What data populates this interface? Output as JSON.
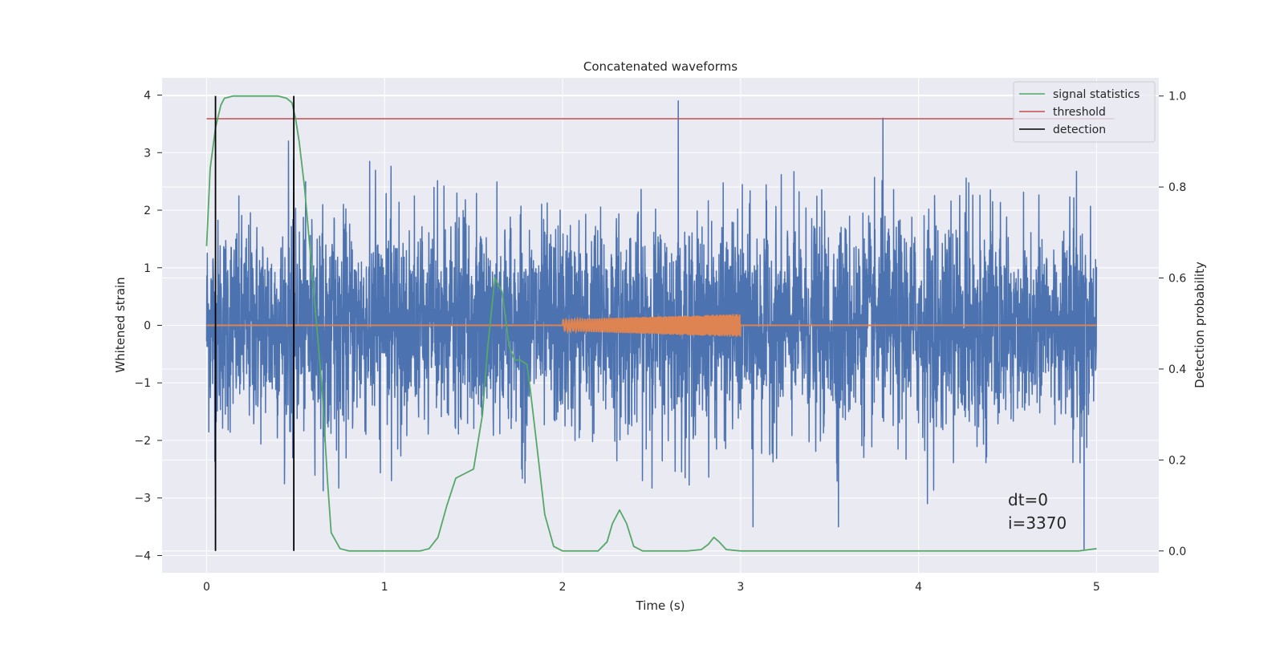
{
  "chart_data": {
    "type": "line",
    "title": "Concatenated waveforms",
    "xlabel": "Time (s)",
    "ylabel": "Whitened strain",
    "ylabel_right": "Detection probability",
    "xlim": [
      -0.25,
      5.35
    ],
    "ylim": [
      -4.3,
      4.3
    ],
    "ylim_right": [
      -0.048,
      1.04
    ],
    "x_ticks": [
      0,
      1,
      2,
      3,
      4,
      5
    ],
    "x_tick_labels": [
      "0",
      "1",
      "2",
      "3",
      "4",
      "5"
    ],
    "y_ticks": [
      4,
      3,
      2,
      1,
      0,
      -1,
      -2,
      -3,
      -4
    ],
    "y_tick_labels": [
      "4",
      "3",
      "2",
      "1",
      "0",
      "−1",
      "−2",
      "−3",
      "−4"
    ],
    "y_right_ticks": [
      1.0,
      0.8,
      0.6,
      0.4,
      0.2,
      0.0
    ],
    "y_right_tick_labels": [
      "1.0",
      "0.8",
      "0.6",
      "0.4",
      "0.2",
      "0.0"
    ],
    "grid": true,
    "legend_position": "top-right",
    "legend": [
      {
        "label": "signal statistics",
        "color": "#55a868"
      },
      {
        "label": "threshold",
        "color": "#c44e52"
      },
      {
        "label": "detection",
        "color": "#000000"
      }
    ],
    "colors": {
      "strain": "#4c72b0",
      "injection": "#dd8452",
      "signal_statistics": "#55a868",
      "threshold": "#c44e52",
      "detection": "#000000",
      "axes_bg": "#eaeaf2",
      "grid": "#ffffff"
    },
    "series": [
      {
        "type": "line",
        "axis": "left",
        "x_range": [
          0,
          5
        ],
        "noise_std": 0.9,
        "spikes": [
          {
            "x": 0.46,
            "y": 3.2
          },
          {
            "x": 2.65,
            "y": 3.9
          },
          {
            "x": 3.8,
            "y": 3.6
          },
          {
            "x": 4.93,
            "y": -3.9
          },
          {
            "x": 0.05,
            "y": -3.2
          },
          {
            "x": 3.07,
            "y": -3.5
          },
          {
            "x": 3.55,
            "y": -3.5
          },
          {
            "x": 4.05,
            "y": -3.1
          }
        ]
      },
      {
        "type": "line",
        "axis": "left",
        "x_range": [
          0,
          5
        ],
        "chirp": {
          "start": 2.0,
          "end": 3.0,
          "amp_start": 0.1,
          "amp_end": 0.2
        }
      },
      {
        "name": "signal statistics",
        "axis": "right",
        "x": [
          0,
          0.02,
          0.05,
          0.08,
          0.1,
          0.15,
          0.2,
          0.3,
          0.4,
          0.45,
          0.48,
          0.5,
          0.52,
          0.55,
          0.6,
          0.65,
          0.68,
          0.7,
          0.75,
          0.8,
          1.0,
          1.2,
          1.25,
          1.3,
          1.35,
          1.4,
          1.45,
          1.5,
          1.55,
          1.58,
          1.62,
          1.66,
          1.7,
          1.73,
          1.76,
          1.8,
          1.82,
          1.85,
          1.9,
          1.95,
          2.0,
          2.1,
          2.2,
          2.25,
          2.28,
          2.32,
          2.36,
          2.4,
          2.45,
          2.7,
          2.78,
          2.82,
          2.85,
          2.88,
          2.92,
          3.0,
          4.0,
          4.9,
          5.0
        ],
        "y": [
          0.67,
          0.84,
          0.93,
          0.98,
          0.995,
          1.0,
          1.0,
          1.0,
          1.0,
          0.995,
          0.985,
          0.95,
          0.9,
          0.8,
          0.58,
          0.35,
          0.15,
          0.04,
          0.005,
          0.0,
          0.0,
          0.0,
          0.005,
          0.03,
          0.1,
          0.16,
          0.17,
          0.18,
          0.3,
          0.45,
          0.6,
          0.57,
          0.45,
          0.42,
          0.42,
          0.41,
          0.35,
          0.25,
          0.08,
          0.01,
          0.0,
          0.0,
          0.0,
          0.02,
          0.06,
          0.09,
          0.06,
          0.01,
          0.0,
          0.0,
          0.003,
          0.015,
          0.03,
          0.02,
          0.003,
          0.0,
          0.0,
          0.0,
          0.005
        ]
      },
      {
        "name": "threshold",
        "axis": "right",
        "x": [
          0,
          5.1
        ],
        "y": [
          0.95,
          0.95
        ]
      },
      {
        "name": "detection",
        "axis": "right",
        "type": "vlines",
        "x": [
          0.05,
          0.49
        ],
        "y_span": [
          0.0,
          1.0
        ]
      }
    ],
    "annotations": [
      {
        "text": "dt=0",
        "x": 4.5,
        "y": -3.0
      },
      {
        "text": "i=3370",
        "x": 4.5,
        "y": -3.4
      }
    ]
  }
}
